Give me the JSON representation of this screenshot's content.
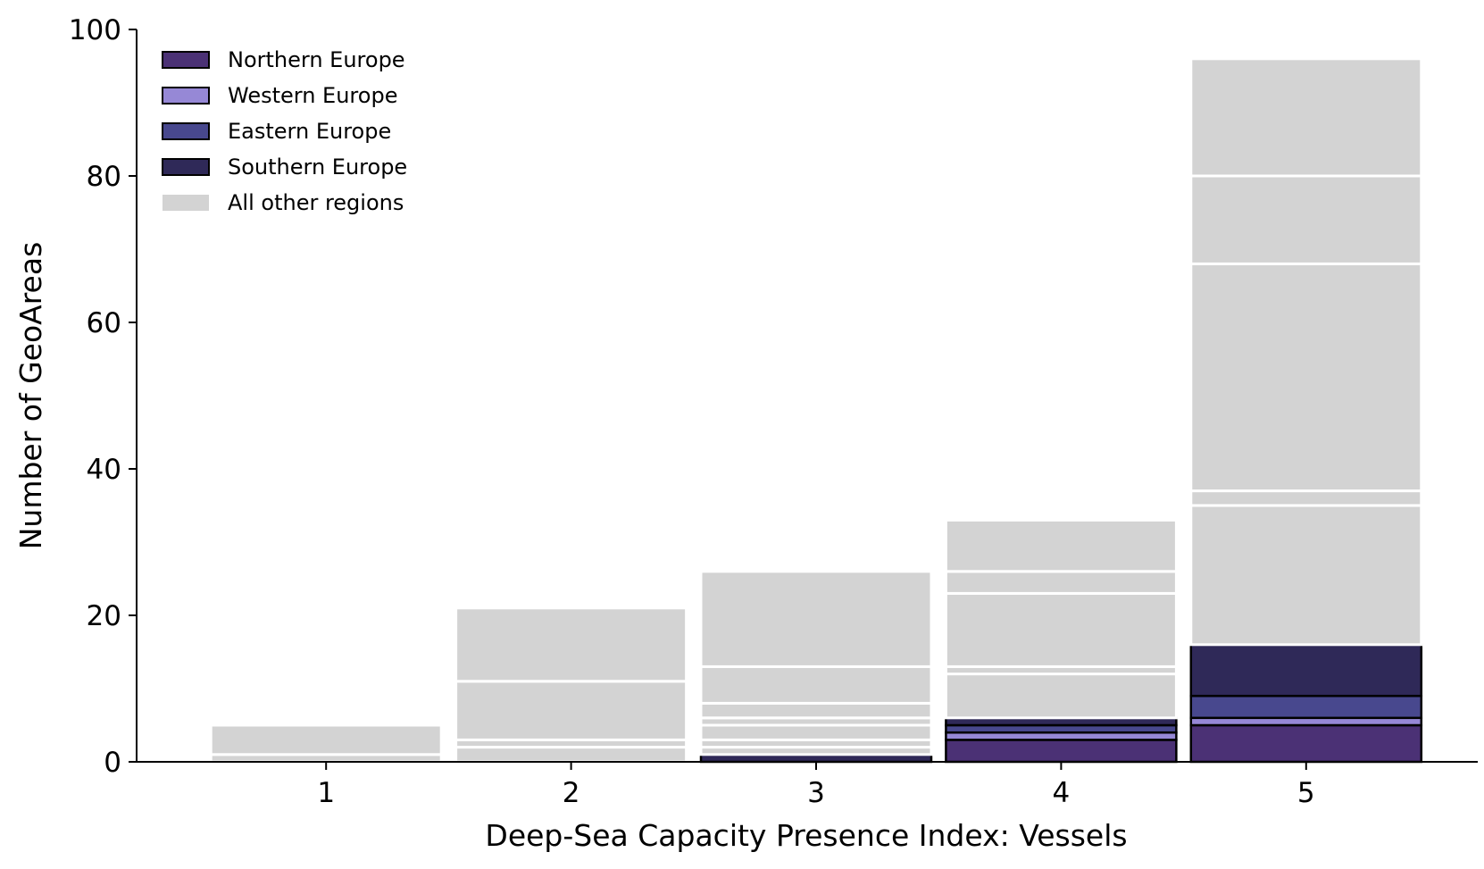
{
  "chart_data": {
    "type": "bar",
    "stacked": true,
    "title": "",
    "xlabel": "Deep-Sea Capacity Presence Index: Vessels",
    "ylabel": "Number of GeoAreas",
    "categories": [
      "1",
      "2",
      "3",
      "4",
      "5"
    ],
    "ylim": [
      0,
      100
    ],
    "yticks": [
      0,
      20,
      40,
      60,
      80,
      100
    ],
    "grid": false,
    "legend_position": "top-left",
    "highlighted_series": [
      {
        "name": "Northern Europe",
        "color": "#4b3175",
        "values": [
          0,
          0,
          0,
          3,
          5
        ]
      },
      {
        "name": "Western Europe",
        "color": "#9688d6",
        "values": [
          0,
          0,
          0,
          1,
          1
        ]
      },
      {
        "name": "Eastern Europe",
        "color": "#48488e",
        "values": [
          0,
          0,
          0,
          1,
          3
        ]
      },
      {
        "name": "Southern Europe",
        "color": "#2f2958",
        "values": [
          0,
          0,
          1,
          1,
          7
        ]
      }
    ],
    "other_regions": {
      "name": "All other regions",
      "color": "#d3d3d3",
      "segments": [
        [
          1,
          4
        ],
        [
          2,
          1,
          8,
          10
        ],
        [
          1,
          1,
          2,
          1,
          2,
          5,
          13
        ],
        [
          6,
          1,
          10,
          3,
          7
        ],
        [
          19,
          2,
          31,
          12,
          16
        ]
      ]
    }
  }
}
